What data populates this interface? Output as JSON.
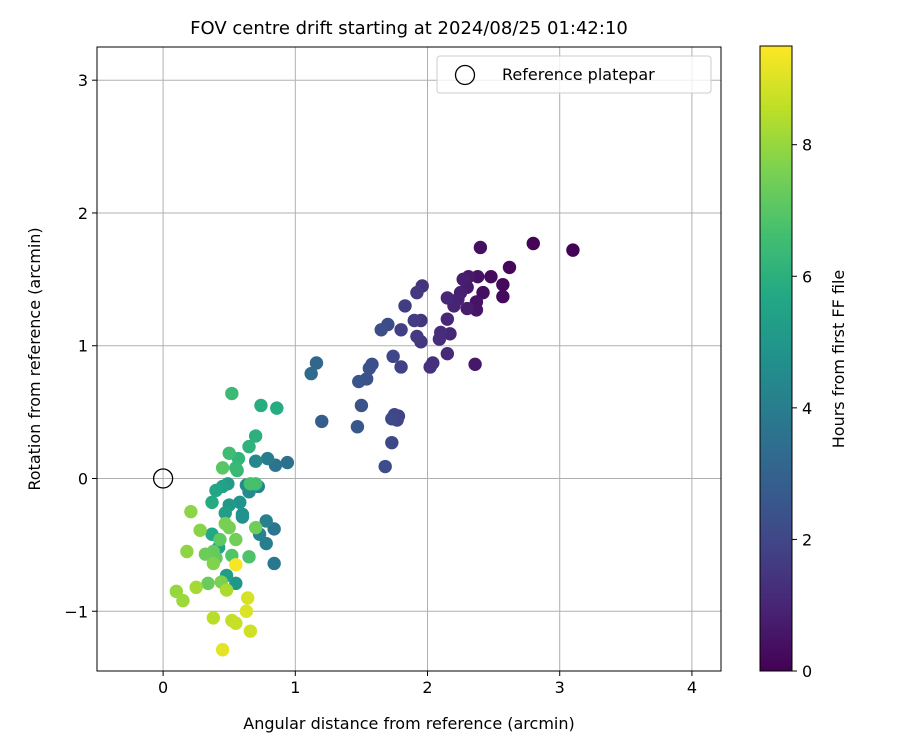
{
  "chart_data": {
    "type": "scatter",
    "title": "FOV centre drift starting at 2024/08/25 01:42:10",
    "xlabel": "Angular distance from reference (arcmin)",
    "ylabel": "Rotation from reference (arcmin)",
    "xlim": [
      -0.5,
      4.22
    ],
    "ylim": [
      -1.45,
      3.25
    ],
    "xticks": [
      0,
      1,
      2,
      3,
      4
    ],
    "yticks": [
      -1,
      0,
      1,
      2,
      3
    ],
    "xtick_labels": [
      "0",
      "1",
      "2",
      "3",
      "4"
    ],
    "ytick_labels": [
      "−1",
      "0",
      "1",
      "2",
      "3"
    ],
    "grid": true,
    "legend": {
      "placement": "top-right",
      "label": "Reference platepar"
    },
    "reference_point": {
      "x": 0,
      "y": 0
    },
    "colorbar": {
      "label": "Hours from first FF file",
      "range": [
        0,
        9.5
      ],
      "ticks": [
        0,
        2,
        4,
        6,
        8
      ],
      "tick_labels": [
        "0",
        "2",
        "4",
        "6",
        "8"
      ],
      "colormap": "viridis"
    },
    "points": [
      {
        "x": 3.1,
        "y": 1.72,
        "c": 0.05
      },
      {
        "x": 2.8,
        "y": 1.77,
        "c": 0.1
      },
      {
        "x": 2.62,
        "y": 1.59,
        "c": 0.15
      },
      {
        "x": 2.57,
        "y": 1.46,
        "c": 0.2
      },
      {
        "x": 2.57,
        "y": 1.37,
        "c": 0.25
      },
      {
        "x": 2.48,
        "y": 1.52,
        "c": 0.3
      },
      {
        "x": 2.42,
        "y": 1.4,
        "c": 0.35
      },
      {
        "x": 2.4,
        "y": 1.74,
        "c": 0.4
      },
      {
        "x": 2.38,
        "y": 1.52,
        "c": 0.45
      },
      {
        "x": 2.37,
        "y": 1.33,
        "c": 0.5
      },
      {
        "x": 2.37,
        "y": 1.27,
        "c": 0.55
      },
      {
        "x": 2.36,
        "y": 0.86,
        "c": 0.6
      },
      {
        "x": 2.31,
        "y": 1.52,
        "c": 0.65
      },
      {
        "x": 2.3,
        "y": 1.44,
        "c": 0.7
      },
      {
        "x": 2.3,
        "y": 1.28,
        "c": 0.75
      },
      {
        "x": 2.27,
        "y": 1.5,
        "c": 0.8
      },
      {
        "x": 2.25,
        "y": 1.4,
        "c": 0.85
      },
      {
        "x": 2.23,
        "y": 1.35,
        "c": 0.9
      },
      {
        "x": 2.2,
        "y": 1.3,
        "c": 0.95
      },
      {
        "x": 2.17,
        "y": 1.09,
        "c": 1.0
      },
      {
        "x": 2.15,
        "y": 1.36,
        "c": 1.05
      },
      {
        "x": 2.15,
        "y": 1.2,
        "c": 1.1
      },
      {
        "x": 2.15,
        "y": 0.94,
        "c": 1.15
      },
      {
        "x": 2.1,
        "y": 1.1,
        "c": 1.2
      },
      {
        "x": 2.09,
        "y": 1.05,
        "c": 1.25
      },
      {
        "x": 2.04,
        "y": 0.87,
        "c": 1.3
      },
      {
        "x": 2.02,
        "y": 0.84,
        "c": 1.35
      },
      {
        "x": 1.96,
        "y": 1.45,
        "c": 1.4
      },
      {
        "x": 1.95,
        "y": 1.19,
        "c": 1.45
      },
      {
        "x": 1.95,
        "y": 1.03,
        "c": 1.5
      },
      {
        "x": 1.92,
        "y": 1.4,
        "c": 1.55
      },
      {
        "x": 1.92,
        "y": 1.07,
        "c": 1.6
      },
      {
        "x": 1.9,
        "y": 1.19,
        "c": 1.65
      },
      {
        "x": 1.83,
        "y": 1.3,
        "c": 1.7
      },
      {
        "x": 1.8,
        "y": 1.12,
        "c": 1.75
      },
      {
        "x": 1.8,
        "y": 0.84,
        "c": 1.8
      },
      {
        "x": 1.78,
        "y": 0.47,
        "c": 1.85
      },
      {
        "x": 1.77,
        "y": 0.44,
        "c": 1.9
      },
      {
        "x": 1.75,
        "y": 0.48,
        "c": 1.95
      },
      {
        "x": 1.74,
        "y": 0.92,
        "c": 2.0
      },
      {
        "x": 1.73,
        "y": 0.45,
        "c": 2.05
      },
      {
        "x": 1.73,
        "y": 0.27,
        "c": 2.1
      },
      {
        "x": 1.7,
        "y": 1.16,
        "c": 2.15
      },
      {
        "x": 1.68,
        "y": 0.09,
        "c": 2.2
      },
      {
        "x": 1.65,
        "y": 1.12,
        "c": 2.25
      },
      {
        "x": 1.58,
        "y": 0.86,
        "c": 2.3
      },
      {
        "x": 1.56,
        "y": 0.83,
        "c": 2.35
      },
      {
        "x": 1.54,
        "y": 0.75,
        "c": 2.4
      },
      {
        "x": 1.5,
        "y": 0.55,
        "c": 2.45
      },
      {
        "x": 1.48,
        "y": 0.73,
        "c": 2.5
      },
      {
        "x": 1.47,
        "y": 0.39,
        "c": 2.6
      },
      {
        "x": 1.2,
        "y": 0.43,
        "c": 2.8
      },
      {
        "x": 1.16,
        "y": 0.87,
        "c": 3.1
      },
      {
        "x": 1.12,
        "y": 0.79,
        "c": 3.3
      },
      {
        "x": 0.94,
        "y": 0.12,
        "c": 3.5
      },
      {
        "x": 0.85,
        "y": 0.1,
        "c": 3.6
      },
      {
        "x": 0.84,
        "y": -0.38,
        "c": 3.7
      },
      {
        "x": 0.84,
        "y": -0.64,
        "c": 3.8
      },
      {
        "x": 0.79,
        "y": 0.15,
        "c": 3.9
      },
      {
        "x": 0.78,
        "y": -0.49,
        "c": 4.0
      },
      {
        "x": 0.78,
        "y": -0.32,
        "c": 4.1
      },
      {
        "x": 0.73,
        "y": -0.42,
        "c": 4.2
      },
      {
        "x": 0.72,
        "y": -0.06,
        "c": 4.3
      },
      {
        "x": 0.7,
        "y": 0.13,
        "c": 4.4
      },
      {
        "x": 0.65,
        "y": -0.1,
        "c": 4.5
      },
      {
        "x": 0.63,
        "y": -0.05,
        "c": 4.6
      },
      {
        "x": 0.6,
        "y": -0.29,
        "c": 4.7
      },
      {
        "x": 0.6,
        "y": -0.27,
        "c": 4.8
      },
      {
        "x": 0.58,
        "y": -0.18,
        "c": 4.9
      },
      {
        "x": 0.55,
        "y": -0.79,
        "c": 5.0
      },
      {
        "x": 0.5,
        "y": -0.2,
        "c": 5.1
      },
      {
        "x": 0.49,
        "y": -0.04,
        "c": 5.2
      },
      {
        "x": 0.48,
        "y": -0.73,
        "c": 5.25
      },
      {
        "x": 0.47,
        "y": -0.26,
        "c": 5.3
      },
      {
        "x": 0.45,
        "y": -0.06,
        "c": 5.4
      },
      {
        "x": 0.42,
        "y": -0.52,
        "c": 5.5
      },
      {
        "x": 0.4,
        "y": -0.09,
        "c": 5.6
      },
      {
        "x": 0.37,
        "y": -0.42,
        "c": 5.7
      },
      {
        "x": 0.37,
        "y": -0.18,
        "c": 5.8
      },
      {
        "x": 0.86,
        "y": 0.53,
        "c": 5.85
      },
      {
        "x": 0.74,
        "y": 0.55,
        "c": 5.9
      },
      {
        "x": 0.7,
        "y": 0.32,
        "c": 6.0
      },
      {
        "x": 0.65,
        "y": 0.24,
        "c": 6.1
      },
      {
        "x": 0.57,
        "y": 0.15,
        "c": 6.2
      },
      {
        "x": 0.56,
        "y": 0.06,
        "c": 6.3
      },
      {
        "x": 0.55,
        "y": 0.08,
        "c": 6.35
      },
      {
        "x": 0.52,
        "y": 0.64,
        "c": 6.4
      },
      {
        "x": 0.5,
        "y": 0.19,
        "c": 6.5
      },
      {
        "x": 0.7,
        "y": -0.04,
        "c": 6.6
      },
      {
        "x": 0.66,
        "y": -0.04,
        "c": 6.7
      },
      {
        "x": 0.65,
        "y": -0.59,
        "c": 6.8
      },
      {
        "x": 0.52,
        "y": -0.58,
        "c": 6.9
      },
      {
        "x": 0.45,
        "y": 0.08,
        "c": 7.0
      },
      {
        "x": 0.43,
        "y": -0.46,
        "c": 7.1
      },
      {
        "x": 0.4,
        "y": -0.6,
        "c": 7.2
      },
      {
        "x": 0.38,
        "y": -0.55,
        "c": 7.25
      },
      {
        "x": 0.34,
        "y": -0.79,
        "c": 7.3
      },
      {
        "x": 0.32,
        "y": -0.57,
        "c": 7.35
      },
      {
        "x": 0.7,
        "y": -0.37,
        "c": 7.4
      },
      {
        "x": 0.55,
        "y": -0.46,
        "c": 7.45
      },
      {
        "x": 0.5,
        "y": -0.37,
        "c": 7.5
      },
      {
        "x": 0.47,
        "y": -0.34,
        "c": 7.55
      },
      {
        "x": 0.44,
        "y": -0.78,
        "c": 7.6
      },
      {
        "x": 0.38,
        "y": -0.64,
        "c": 7.7
      },
      {
        "x": 0.28,
        "y": -0.39,
        "c": 7.8
      },
      {
        "x": 0.21,
        "y": -0.25,
        "c": 7.85
      },
      {
        "x": 0.18,
        "y": -0.55,
        "c": 7.9
      },
      {
        "x": 0.1,
        "y": -0.85,
        "c": 8.0
      },
      {
        "x": 0.15,
        "y": -0.92,
        "c": 8.1
      },
      {
        "x": 0.25,
        "y": -0.82,
        "c": 8.2
      },
      {
        "x": 0.48,
        "y": -0.84,
        "c": 8.3
      },
      {
        "x": 0.38,
        "y": -1.05,
        "c": 8.5
      },
      {
        "x": 0.52,
        "y": -1.07,
        "c": 8.6
      },
      {
        "x": 0.55,
        "y": -1.09,
        "c": 8.7
      },
      {
        "x": 0.66,
        "y": -1.15,
        "c": 8.8
      },
      {
        "x": 0.64,
        "y": -0.9,
        "c": 8.9
      },
      {
        "x": 0.63,
        "y": -1.0,
        "c": 9.0
      },
      {
        "x": 0.45,
        "y": -1.29,
        "c": 9.1
      },
      {
        "x": 0.55,
        "y": -0.65,
        "c": 9.4
      }
    ]
  }
}
